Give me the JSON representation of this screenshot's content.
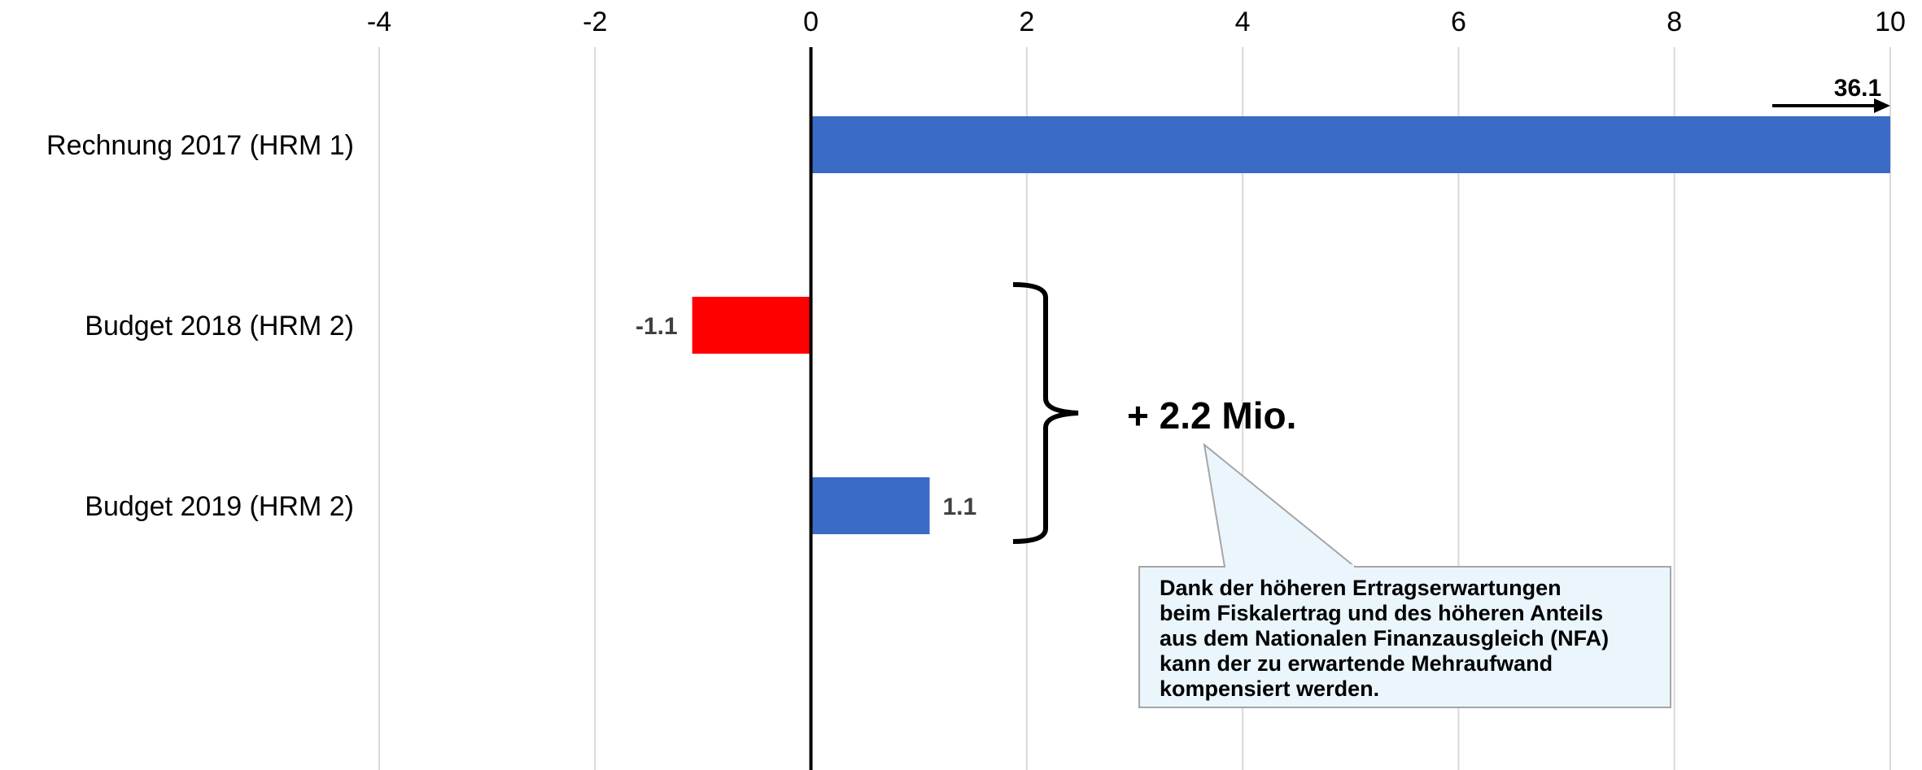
{
  "chart_data": {
    "type": "bar",
    "orientation": "horizontal",
    "categories": [
      "Rechnung 2017 (HRM 1)",
      "Budget 2018 (HRM 2)",
      "Budget 2019 (HRM 2)"
    ],
    "values": [
      36.1,
      -1.1,
      1.1
    ],
    "data_labels": [
      "36.1",
      "-1.1",
      "1.1"
    ],
    "bar_colors": [
      "#3A6BC6",
      "#FF0000",
      "#3A6BC6"
    ],
    "xlim": [
      -4,
      10
    ],
    "xticks": [
      -4,
      -2,
      0,
      2,
      4,
      6,
      8,
      10
    ],
    "xtick_labels": [
      "-4",
      "-2",
      "0",
      "2",
      "4",
      "6",
      "8",
      "10"
    ],
    "grid": true,
    "axis_position": "top",
    "annotations": {
      "difference_label": "+ 2.2 Mio.",
      "callout_lines": [
        "Dank der höheren Ertragserwartungen",
        "beim Fiskalertrag und des höheren Anteils",
        "aus dem Nationalen Finanzausgleich (NFA)",
        "kann der zu erwartende Mehraufwand",
        "kompensiert werden."
      ]
    }
  },
  "colors": {
    "gridline": "#D9D9D9",
    "zero_axis": "#000000",
    "callout_fill": "#EAF5FC",
    "callout_border": "#A6A6A6"
  }
}
